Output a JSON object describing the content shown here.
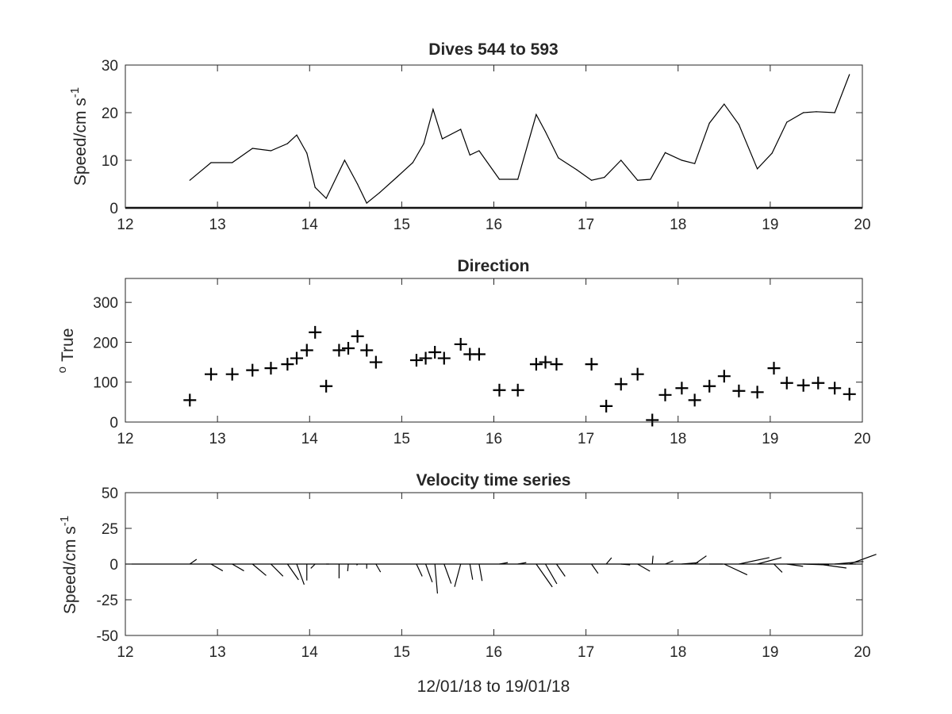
{
  "chart_data": [
    {
      "id": "speed",
      "type": "line",
      "title": "Dives 544 to 593",
      "xlabel": "",
      "ylabel": "Speed/cm s",
      "ylabel_superscript": "-1",
      "xlim": [
        12,
        20
      ],
      "ylim": [
        0,
        30
      ],
      "xticks": [
        "12",
        "13",
        "14",
        "15",
        "16",
        "17",
        "18",
        "19",
        "20"
      ],
      "yticks": [
        "0",
        "10",
        "20",
        "30"
      ],
      "line_color": "#000000",
      "series": [
        {
          "x": [
            12.7,
            12.93,
            13.16,
            13.38,
            13.58,
            13.76,
            13.86,
            13.97,
            14.06,
            14.18,
            14.38,
            14.52,
            14.62,
            14.76,
            14.95,
            15.12,
            15.24,
            15.34,
            15.44,
            15.64,
            15.74,
            15.84,
            16.06,
            16.26,
            16.46,
            16.56,
            16.7,
            16.9,
            17.06,
            17.2,
            17.38,
            17.56,
            17.7,
            17.86,
            18.04,
            18.18,
            18.34,
            18.5,
            18.66,
            18.86,
            19.02,
            19.18,
            19.36,
            19.5,
            19.7,
            19.86
          ],
          "y": [
            5.8,
            9.5,
            9.5,
            12.5,
            12,
            13.5,
            15.3,
            11.5,
            4.3,
            2,
            10,
            5,
            1,
            3.2,
            6.5,
            9.5,
            13.5,
            20.7,
            14.5,
            16.5,
            11.1,
            12,
            6,
            6,
            19.6,
            16,
            10.5,
            8,
            5.8,
            6.4,
            10,
            5.8,
            6,
            11.6,
            10,
            9.3,
            17.8,
            21.8,
            17.5,
            8.2,
            11.5,
            18,
            20,
            20.2,
            20,
            28
          ]
        }
      ]
    },
    {
      "id": "direction",
      "type": "scatter",
      "title": "Direction",
      "xlabel": "",
      "ylabel": "True",
      "ylabel_superscript": "o",
      "xlim": [
        12,
        20
      ],
      "ylim": [
        0,
        360
      ],
      "xticks": [
        "12",
        "13",
        "14",
        "15",
        "16",
        "17",
        "18",
        "19",
        "20"
      ],
      "yticks": [
        "0",
        "100",
        "200",
        "300"
      ],
      "marker": "+",
      "marker_color": "#000000",
      "series": [
        {
          "x": [
            12.7,
            12.93,
            13.16,
            13.38,
            13.58,
            13.76,
            13.86,
            13.97,
            14.06,
            14.18,
            14.32,
            14.42,
            14.52,
            14.62,
            14.72,
            15.16,
            15.26,
            15.36,
            15.46,
            15.64,
            15.74,
            15.84,
            16.06,
            16.26,
            16.46,
            16.56,
            16.68,
            17.06,
            17.22,
            17.38,
            17.56,
            17.72,
            17.86,
            18.04,
            18.18,
            18.34,
            18.5,
            18.66,
            18.86,
            19.04,
            19.18,
            19.36,
            19.52,
            19.7,
            19.86
          ],
          "y": [
            55,
            120,
            120,
            130,
            135,
            145,
            160,
            180,
            225,
            90,
            180,
            185,
            215,
            180,
            150,
            155,
            160,
            175,
            160,
            195,
            170,
            170,
            80,
            80,
            145,
            150,
            145,
            145,
            40,
            95,
            120,
            5,
            68,
            85,
            55,
            90,
            115,
            78,
            75,
            135,
            98,
            92,
            98,
            85,
            70
          ]
        }
      ]
    },
    {
      "id": "velocity",
      "type": "line",
      "subtype": "stick-vectors",
      "title": "Velocity time series",
      "xlabel": "12/01/18 to 19/01/18",
      "ylabel": "Speed/cm s",
      "ylabel_superscript": "-1",
      "xlim": [
        12,
        20
      ],
      "ylim": [
        -50,
        50
      ],
      "xticks": [
        "12",
        "13",
        "14",
        "15",
        "16",
        "17",
        "18",
        "19",
        "20"
      ],
      "yticks": [
        "-50",
        "-25",
        "0",
        "25",
        "50"
      ],
      "line_color": "#000000",
      "series": [
        {
          "name": "sticks",
          "x": [
            12.7,
            12.93,
            13.16,
            13.38,
            13.58,
            13.76,
            13.86,
            13.97,
            14.06,
            14.18,
            14.32,
            14.42,
            14.52,
            14.62,
            14.72,
            15.16,
            15.26,
            15.36,
            15.46,
            15.64,
            15.74,
            15.84,
            16.06,
            16.26,
            16.46,
            16.56,
            16.68,
            17.06,
            17.22,
            17.38,
            17.56,
            17.72,
            17.86,
            18.04,
            18.18,
            18.34,
            18.5,
            18.66,
            18.86,
            19.04,
            19.18,
            19.36,
            19.52,
            19.7,
            19.86
          ],
          "speed": [
            5.8,
            9.5,
            9.5,
            12.5,
            12,
            13.5,
            15.3,
            11.5,
            4.3,
            2,
            10,
            5,
            1,
            3.2,
            6.5,
            9.5,
            13.5,
            20.7,
            14.5,
            16.5,
            11.1,
            12,
            6,
            6,
            19.6,
            16,
            10.5,
            8,
            5.8,
            6.4,
            10,
            5.8,
            6,
            11.6,
            10,
            9.3,
            17.8,
            21.8,
            17.5,
            8.2,
            11.5,
            18,
            20,
            20.2,
            20
          ],
          "direction": [
            55,
            120,
            120,
            130,
            135,
            145,
            160,
            180,
            225,
            90,
            180,
            185,
            215,
            180,
            150,
            155,
            160,
            175,
            160,
            195,
            170,
            170,
            80,
            80,
            145,
            150,
            145,
            145,
            40,
            95,
            120,
            5,
            68,
            85,
            55,
            90,
            115,
            78,
            75,
            135,
            98,
            92,
            98,
            85,
            70
          ]
        }
      ]
    }
  ]
}
